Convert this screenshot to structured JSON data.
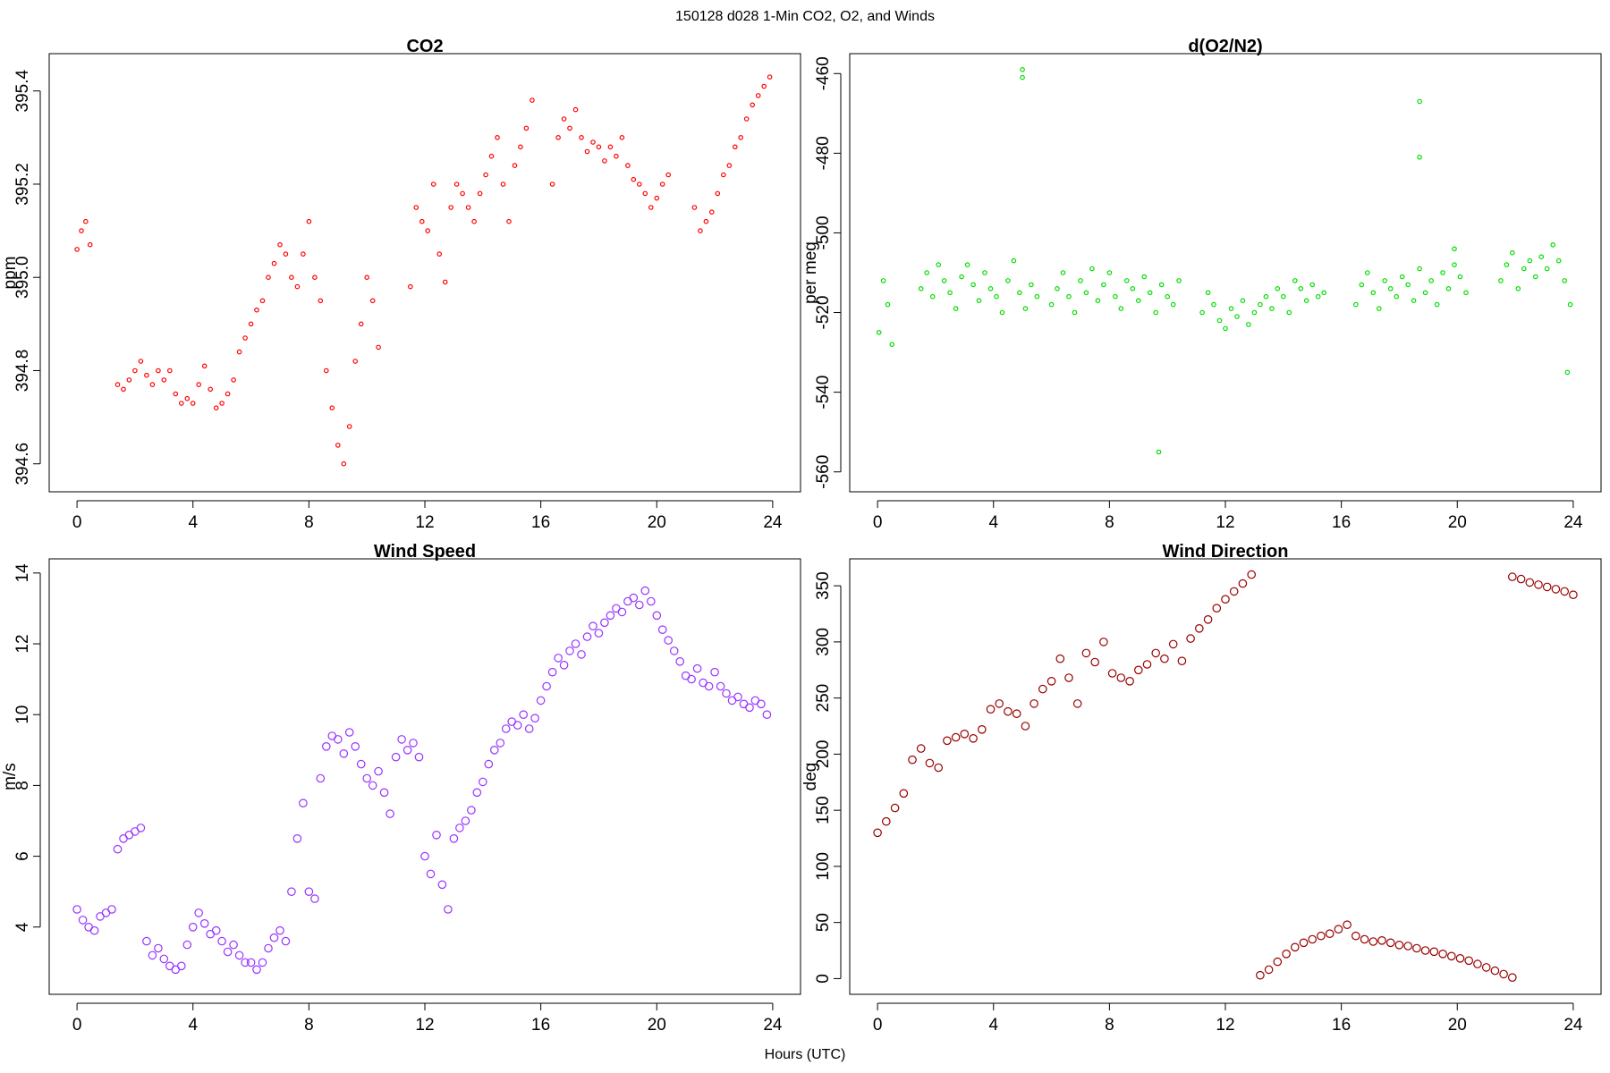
{
  "figure": {
    "suptitle": "150128   d028   1-Min CO2, O2, and Winds",
    "xlabel": "Hours (UTC)"
  },
  "chart_data": [
    {
      "type": "scatter",
      "title": "CO2",
      "ylabel": "ppm",
      "xlim": [
        -0.96,
        24.96
      ],
      "ylim": [
        394.54,
        395.48
      ],
      "xticks": [
        0,
        4,
        8,
        12,
        16,
        20,
        24
      ],
      "yticks": [
        394.6,
        394.8,
        395.0,
        395.2,
        395.4
      ],
      "ytick_labels": [
        "394.6",
        "394.8",
        "395.0",
        "395.2",
        "395.4"
      ],
      "color": "#ff0000",
      "marker": "hollow-circle",
      "series": [
        {
          "x": [
            0.0,
            0.15,
            0.3,
            0.45,
            1.4,
            1.6,
            1.8,
            2.0,
            2.2,
            2.4,
            2.6,
            2.8,
            3.0,
            3.2,
            3.4,
            3.6,
            3.8,
            4.0,
            4.2,
            4.4,
            4.6,
            4.8,
            5.0,
            5.2,
            5.4,
            5.6,
            5.8,
            6.0,
            6.2,
            6.4,
            6.6,
            6.8,
            7.0,
            7.2,
            7.4,
            7.6,
            7.8,
            8.0,
            8.2,
            8.4,
            8.6,
            8.8,
            9.0,
            9.2,
            9.4,
            9.6,
            9.8,
            10.0,
            10.2,
            10.4,
            11.5,
            11.7,
            11.9,
            12.1,
            12.3,
            12.5,
            12.7,
            12.9,
            13.1,
            13.3,
            13.5,
            13.7,
            13.9,
            14.1,
            14.3,
            14.5,
            14.7,
            14.9,
            15.1,
            15.3,
            15.5,
            15.7,
            16.4,
            16.6,
            16.8,
            17.0,
            17.2,
            17.4,
            17.6,
            17.8,
            18.0,
            18.2,
            18.4,
            18.6,
            18.8,
            19.0,
            19.2,
            19.4,
            19.6,
            19.8,
            20.0,
            20.2,
            20.4,
            21.3,
            21.5,
            21.7,
            21.9,
            22.1,
            22.3,
            22.5,
            22.7,
            22.9,
            23.1,
            23.3,
            23.5,
            23.7,
            23.9
          ],
          "y": [
            395.06,
            395.1,
            395.12,
            395.07,
            394.77,
            394.76,
            394.78,
            394.8,
            394.82,
            394.79,
            394.77,
            394.8,
            394.78,
            394.8,
            394.75,
            394.73,
            394.74,
            394.73,
            394.77,
            394.81,
            394.76,
            394.72,
            394.73,
            394.75,
            394.78,
            394.84,
            394.87,
            394.9,
            394.93,
            394.95,
            395.0,
            395.03,
            395.07,
            395.05,
            395.0,
            394.98,
            395.05,
            395.12,
            395.0,
            394.95,
            394.8,
            394.72,
            394.64,
            394.6,
            394.68,
            394.82,
            394.9,
            395.0,
            394.95,
            394.85,
            394.98,
            395.15,
            395.12,
            395.1,
            395.2,
            395.05,
            394.99,
            395.15,
            395.2,
            395.18,
            395.15,
            395.12,
            395.18,
            395.22,
            395.26,
            395.3,
            395.2,
            395.12,
            395.24,
            395.28,
            395.32,
            395.38,
            395.2,
            395.3,
            395.34,
            395.32,
            395.36,
            395.3,
            395.27,
            395.29,
            395.28,
            395.25,
            395.28,
            395.26,
            395.3,
            395.24,
            395.21,
            395.2,
            395.18,
            395.15,
            395.17,
            395.2,
            395.22,
            395.15,
            395.1,
            395.12,
            395.14,
            395.18,
            395.22,
            395.24,
            395.28,
            395.3,
            395.34,
            395.37,
            395.39,
            395.41,
            395.43
          ]
        }
      ]
    },
    {
      "type": "scatter",
      "title": "d(O2/N2)",
      "ylabel": "per meg",
      "xlim": [
        -0.96,
        24.96
      ],
      "ylim": [
        -565.0,
        -455.0
      ],
      "xticks": [
        0,
        4,
        8,
        12,
        16,
        20,
        24
      ],
      "yticks": [
        -560,
        -540,
        -520,
        -500,
        -480,
        -460
      ],
      "color": "#00dd00",
      "marker": "hollow-circle",
      "series": [
        {
          "x": [
            0.05,
            0.2,
            0.35,
            0.5,
            1.5,
            1.7,
            1.9,
            2.1,
            2.3,
            2.5,
            2.7,
            2.9,
            3.1,
            3.3,
            3.5,
            3.7,
            3.9,
            4.1,
            4.3,
            4.5,
            4.7,
            4.9,
            5.1,
            5.3,
            5.5,
            6.0,
            6.2,
            6.4,
            6.6,
            6.8,
            7.0,
            7.2,
            7.4,
            7.6,
            7.8,
            8.0,
            8.2,
            8.4,
            8.6,
            8.8,
            9.0,
            9.2,
            9.4,
            9.6,
            9.8,
            10.0,
            10.2,
            10.4,
            11.2,
            11.4,
            11.6,
            11.8,
            12.0,
            12.2,
            12.4,
            12.6,
            12.8,
            13.0,
            13.2,
            13.4,
            13.6,
            13.8,
            14.0,
            14.2,
            14.4,
            14.6,
            14.8,
            15.0,
            15.2,
            15.4,
            16.5,
            16.7,
            16.9,
            17.1,
            17.3,
            17.5,
            17.7,
            17.9,
            18.1,
            18.3,
            18.5,
            18.7,
            18.9,
            19.1,
            19.3,
            19.5,
            19.7,
            19.9,
            20.1,
            20.3,
            21.5,
            21.7,
            21.9,
            22.1,
            22.3,
            22.5,
            22.7,
            22.9,
            23.1,
            23.3,
            23.5,
            23.7,
            23.9,
            5.0,
            5.0,
            18.7,
            18.7,
            19.9,
            9.7,
            23.8
          ],
          "y": [
            -525,
            -512,
            -518,
            -528,
            -514,
            -510,
            -516,
            -508,
            -512,
            -515,
            -519,
            -511,
            -508,
            -513,
            -517,
            -510,
            -514,
            -516,
            -520,
            -512,
            -507,
            -515,
            -519,
            -513,
            -516,
            -518,
            -514,
            -510,
            -516,
            -520,
            -512,
            -515,
            -509,
            -517,
            -513,
            -510,
            -516,
            -519,
            -512,
            -514,
            -517,
            -511,
            -515,
            -520,
            -513,
            -516,
            -518,
            -512,
            -520,
            -515,
            -518,
            -522,
            -524,
            -519,
            -521,
            -517,
            -523,
            -520,
            -518,
            -516,
            -519,
            -514,
            -516,
            -520,
            -512,
            -514,
            -517,
            -513,
            -516,
            -515,
            -518,
            -513,
            -510,
            -515,
            -519,
            -512,
            -514,
            -516,
            -511,
            -513,
            -517,
            -509,
            -515,
            -512,
            -518,
            -510,
            -514,
            -508,
            -511,
            -515,
            -512,
            -508,
            -505,
            -514,
            -509,
            -507,
            -511,
            -506,
            -509,
            -503,
            -507,
            -512,
            -518,
            -461,
            -459,
            -467,
            -481,
            -504,
            -555,
            -535
          ]
        }
      ]
    },
    {
      "type": "scatter",
      "title": "Wind Speed",
      "ylabel": "m/s",
      "xlim": [
        -0.96,
        24.96
      ],
      "ylim": [
        2.1,
        14.4
      ],
      "xticks": [
        0,
        4,
        8,
        12,
        16,
        20,
        24
      ],
      "yticks": [
        4,
        6,
        8,
        10,
        12,
        14
      ],
      "color": "#9933ff",
      "marker": "hollow-circle",
      "series": [
        {
          "x": [
            0.0,
            0.2,
            0.4,
            0.6,
            0.8,
            1.0,
            1.2,
            1.4,
            1.6,
            1.8,
            2.0,
            2.2,
            2.4,
            2.6,
            2.8,
            3.0,
            3.2,
            3.4,
            3.6,
            3.8,
            4.0,
            4.2,
            4.4,
            4.6,
            4.8,
            5.0,
            5.2,
            5.4,
            5.6,
            5.8,
            6.0,
            6.2,
            6.4,
            6.6,
            6.8,
            7.0,
            7.2,
            7.4,
            7.6,
            7.8,
            8.0,
            8.2,
            8.4,
            8.6,
            8.8,
            9.0,
            9.2,
            9.4,
            9.6,
            9.8,
            10.0,
            10.2,
            10.4,
            10.6,
            10.8,
            11.0,
            11.2,
            11.4,
            11.6,
            11.8,
            12.0,
            12.2,
            12.4,
            12.6,
            12.8,
            13.0,
            13.2,
            13.4,
            13.6,
            13.8,
            14.0,
            14.2,
            14.4,
            14.6,
            14.8,
            15.0,
            15.2,
            15.4,
            15.6,
            15.8,
            16.0,
            16.2,
            16.4,
            16.6,
            16.8,
            17.0,
            17.2,
            17.4,
            17.6,
            17.8,
            18.0,
            18.2,
            18.4,
            18.6,
            18.8,
            19.0,
            19.2,
            19.4,
            19.6,
            19.8,
            20.0,
            20.2,
            20.4,
            20.6,
            20.8,
            21.0,
            21.2,
            21.4,
            21.6,
            21.8,
            22.0,
            22.2,
            22.4,
            22.6,
            22.8,
            23.0,
            23.2,
            23.4,
            23.6,
            23.8
          ],
          "y": [
            4.5,
            4.2,
            4.0,
            3.9,
            4.3,
            4.4,
            4.5,
            6.2,
            6.5,
            6.6,
            6.7,
            6.8,
            3.6,
            3.2,
            3.4,
            3.1,
            2.9,
            2.8,
            2.9,
            3.5,
            4.0,
            4.4,
            4.1,
            3.8,
            3.9,
            3.6,
            3.3,
            3.5,
            3.2,
            3.0,
            3.0,
            2.8,
            3.0,
            3.4,
            3.7,
            3.9,
            3.6,
            5.0,
            6.5,
            7.5,
            5.0,
            4.8,
            8.2,
            9.1,
            9.4,
            9.3,
            8.9,
            9.5,
            9.1,
            8.6,
            8.2,
            8.0,
            8.4,
            7.8,
            7.2,
            8.8,
            9.3,
            9.0,
            9.2,
            8.8,
            6.0,
            5.5,
            6.6,
            5.2,
            4.5,
            6.5,
            6.8,
            7.0,
            7.3,
            7.8,
            8.1,
            8.6,
            9.0,
            9.2,
            9.6,
            9.8,
            9.7,
            10.0,
            9.6,
            9.9,
            10.4,
            10.8,
            11.2,
            11.6,
            11.4,
            11.8,
            12.0,
            11.7,
            12.2,
            12.5,
            12.3,
            12.6,
            12.8,
            13.0,
            12.9,
            13.2,
            13.3,
            13.1,
            13.5,
            13.2,
            12.8,
            12.4,
            12.1,
            11.8,
            11.5,
            11.1,
            11.0,
            11.3,
            10.9,
            10.8,
            11.2,
            10.8,
            10.6,
            10.4,
            10.5,
            10.3,
            10.2,
            10.4,
            10.3,
            10.0
          ]
        }
      ]
    },
    {
      "type": "scatter",
      "title": "Wind Direction",
      "ylabel": "deg",
      "xlim": [
        -0.96,
        24.96
      ],
      "ylim": [
        -14.0,
        374.0
      ],
      "xticks": [
        0,
        4,
        8,
        12,
        16,
        20,
        24
      ],
      "yticks": [
        0,
        50,
        100,
        150,
        200,
        250,
        300,
        350
      ],
      "color": "#990000",
      "marker": "hollow-circle",
      "series": [
        {
          "x": [
            0.0,
            0.3,
            0.6,
            0.9,
            1.2,
            1.5,
            1.8,
            2.1,
            2.4,
            2.7,
            3.0,
            3.3,
            3.6,
            3.9,
            4.2,
            4.5,
            4.8,
            5.1,
            5.4,
            5.7,
            6.0,
            6.3,
            6.6,
            6.9,
            7.2,
            7.5,
            7.8,
            8.1,
            8.4,
            8.7,
            9.0,
            9.3,
            9.6,
            9.9,
            10.2,
            10.5,
            10.8,
            11.1,
            11.4,
            11.7,
            12.0,
            12.3,
            12.6,
            12.9
          ],
          "y": [
            130,
            140,
            152,
            165,
            195,
            205,
            192,
            188,
            212,
            215,
            218,
            214,
            222,
            240,
            245,
            238,
            236,
            225,
            245,
            258,
            265,
            285,
            268,
            245,
            290,
            282,
            300,
            272,
            268,
            265,
            275,
            280,
            290,
            285,
            298,
            283,
            303,
            312,
            320,
            330,
            338,
            345,
            352,
            360
          ]
        },
        {
          "x": [
            13.2,
            13.5,
            13.8,
            14.1,
            14.4,
            14.7,
            15.0,
            15.3,
            15.6,
            15.9,
            16.2,
            16.5,
            16.8,
            17.1,
            17.4,
            17.7,
            18.0,
            18.3,
            18.6,
            18.9,
            19.2,
            19.5,
            19.8,
            20.1,
            20.4,
            20.7,
            21.0,
            21.3,
            21.6,
            21.9
          ],
          "y": [
            3,
            8,
            15,
            22,
            28,
            32,
            35,
            38,
            40,
            44,
            48,
            38,
            35,
            33,
            34,
            32,
            30,
            29,
            27,
            25,
            24,
            22,
            20,
            18,
            16,
            13,
            10,
            7,
            4,
            1
          ]
        },
        {
          "x": [
            21.9,
            22.2,
            22.5,
            22.8,
            23.1,
            23.4,
            23.7,
            24.0
          ],
          "y": [
            358,
            356,
            353,
            351,
            349,
            347,
            345,
            342
          ]
        }
      ]
    }
  ]
}
